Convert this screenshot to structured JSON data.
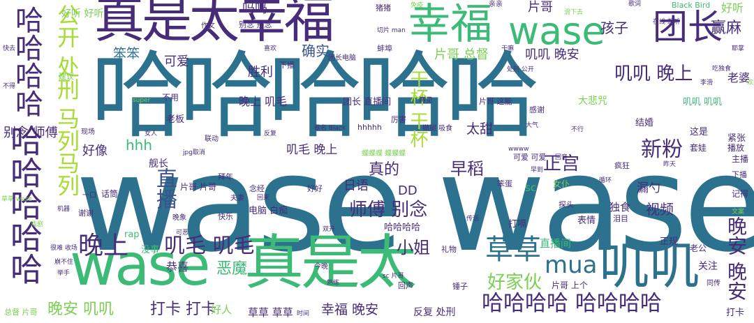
{
  "title": "",
  "colors": {
    "dark_purple": "#472c7a",
    "teal": "#2c728e",
    "green": "#3bbb75",
    "lime": "#a8db34",
    "light_green": "#7ad151",
    "indigo": "#3b528b"
  },
  "words": [
    {
      "text": "wase wase"
    },
    {
      "text": "哈哈哈哈哈"
    },
    {
      "text": "真是太幸福"
    },
    {
      "text": "真是太"
    },
    {
      "text": "wase"
    },
    {
      "text": "wase"
    },
    {
      "text": "幸福"
    },
    {
      "text": "叽叽"
    },
    {
      "text": "哈哈哈哈哈"
    },
    {
      "text": "哈哈哈哈"
    },
    {
      "text": "团长"
    },
    {
      "text": "公开 处刑 马列马列"
    },
    {
      "text": "干杯 干杯"
    },
    {
      "text": "叽叽 晚上"
    },
    {
      "text": "哈哈哈哈 哈哈哈哈"
    },
    {
      "text": "草草"
    },
    {
      "text": "mua"
    },
    {
      "text": "晚上"
    },
    {
      "text": "叽毛 叽毛"
    },
    {
      "text": "师傅 别念"
    },
    {
      "text": "新粉"
    },
    {
      "text": "晚安 晚安"
    },
    {
      "text": "直播"
    },
    {
      "text": "好家伙"
    },
    {
      "text": "小姐"
    },
    {
      "text": "晚安 叽叽"
    },
    {
      "text": "打卡 打卡"
    },
    {
      "text": "正宫"
    },
    {
      "text": "早稻"
    },
    {
      "text": "恶魔"
    },
    {
      "text": "幸福 晚安"
    },
    {
      "text": "真的"
    },
    {
      "text": "赢麻"
    },
    {
      "text": "孩子"
    },
    {
      "text": "片哥 总督"
    },
    {
      "text": "叽叽 晚安"
    },
    {
      "text": "确实"
    },
    {
      "text": "胜利"
    },
    {
      "text": "可爱"
    },
    {
      "text": "笨笨"
    },
    {
      "text": "吗吗"
    },
    {
      "text": "片哥"
    },
    {
      "text": "别念 师傅"
    },
    {
      "text": "好像"
    },
    {
      "text": "hhh"
    },
    {
      "text": "晚上 叽毛"
    },
    {
      "text": "日语"
    },
    {
      "text": "DD"
    },
    {
      "text": "太甜"
    },
    {
      "text": "叽毛 晚上"
    },
    {
      "text": "老婆"
    },
    {
      "text": "视频"
    },
    {
      "text": "漏勺"
    },
    {
      "text": "大悲咒"
    },
    {
      "text": "哈哈哈哈"
    },
    {
      "text": "好听 好听"
    },
    {
      "text": "好听"
    },
    {
      "text": "恭喜"
    },
    {
      "text": "电脑 白痴"
    },
    {
      "text": "直播间"
    },
    {
      "text": "关注"
    },
    {
      "text": "好人"
    },
    {
      "text": "草草 草草"
    },
    {
      "text": "反复 处刑"
    },
    {
      "text": "打卡"
    },
    {
      "text": "表情"
    },
    {
      "text": "打嗝"
    },
    {
      "text": "独食"
    },
    {
      "text": "舰长"
    },
    {
      "text": "老板"
    },
    {
      "text": "结婚"
    },
    {
      "text": "这是"
    },
    {
      "text": "紧张"
    },
    {
      "text": "套娃"
    },
    {
      "text": "片哥 片哥"
    },
    {
      "text": "话筒"
    },
    {
      "text": "sc"
    },
    {
      "text": "女仆"
    },
    {
      "text": "没事"
    },
    {
      "text": "rap"
    },
    {
      "text": "叽叽 叽叽"
    },
    {
      "text": "团长 直播间"
    },
    {
      "text": "正规"
    },
    {
      "text": "老公"
    },
    {
      "text": "片哥 上个"
    },
    {
      "text": "Black Bird"
    },
    {
      "text": "片哥 这能"
    },
    {
      "text": "可爱 可爱"
    },
    {
      "text": "猪猪"
    },
    {
      "text": "团长电脑"
    },
    {
      "text": "蚌埠"
    },
    {
      "text": "作文"
    },
    {
      "text": "别念 别念"
    },
    {
      "text": "下播"
    },
    {
      "text": "记得"
    },
    {
      "text": "主播"
    },
    {
      "text": "播放"
    },
    {
      "text": "疯狂"
    },
    {
      "text": "总督 片哥"
    },
    {
      "text": "晚象"
    },
    {
      "text": "快乐"
    },
    {
      "text": "礼物"
    },
    {
      "text": "泪目"
    },
    {
      "text": "锤子"
    },
    {
      "text": "同传"
    },
    {
      "text": "回声"
    },
    {
      "text": "哈哈哈哈哈"
    },
    {
      "text": "今晚"
    },
    {
      "text": "念经"
    },
    {
      "text": "夫妻"
    },
    {
      "text": "hhhhh"
    },
    {
      "text": "厉害"
    },
    {
      "text": "撤腿 吸食"
    },
    {
      "text": "不用"
    },
    {
      "text": "再见"
    },
    {
      "text": "感谢"
    },
    {
      "text": "大气"
    },
    {
      "text": "在线 想听"
    },
    {
      "text": "歌词"
    },
    {
      "text": "滑下去"
    },
    {
      "text": "免疫"
    },
    {
      "text": "切片 man"
    },
    {
      "text": "干嘛"
    },
    {
      "text": "耶掌"
    },
    {
      "text": "处刑 公开"
    },
    {
      "text": "吃独食"
    },
    {
      "text": "李滑"
    },
    {
      "text": "欢迎"
    },
    {
      "text": "好好"
    },
    {
      "text": "回来"
    },
    {
      "text": "拜年"
    },
    {
      "text": "联动"
    },
    {
      "text": "现场"
    },
    {
      "text": "一口"
    },
    {
      "text": "下播"
    },
    {
      "text": "亲亲"
    },
    {
      "text": "喜欢"
    },
    {
      "text": "建议"
    },
    {
      "text": "快去"
    },
    {
      "text": "不得"
    },
    {
      "text": "super"
    },
    {
      "text": "jpg取消"
    },
    {
      "text": "歌名 Black"
    },
    {
      "text": "蝶蝶蝶 蝶蝶蝶"
    },
    {
      "text": "wwww"
    },
    {
      "text": "早到"
    },
    {
      "text": "循环"
    },
    {
      "text": "探头"
    },
    {
      "text": "笨蛋"
    },
    {
      "text": "回音"
    },
    {
      "text": "不行"
    },
    {
      "text": "昨天"
    },
    {
      "text": "文案"
    },
    {
      "text": "女人"
    },
    {
      "text": "谢谢"
    },
    {
      "text": "反复"
    },
    {
      "text": "可恶"
    },
    {
      "text": "双开"
    },
    {
      "text": "传话"
    },
    {
      "text": "熟练"
    },
    {
      "text": "sc 片哥"
    },
    {
      "text": "时间"
    },
    {
      "text": "很难 收场"
    },
    {
      "text": "崩不住"
    },
    {
      "text": "举手"
    },
    {
      "text": "草草 wase"
    },
    {
      "text": "机器"
    },
    {
      "text": "戏剧"
    }
  ]
}
